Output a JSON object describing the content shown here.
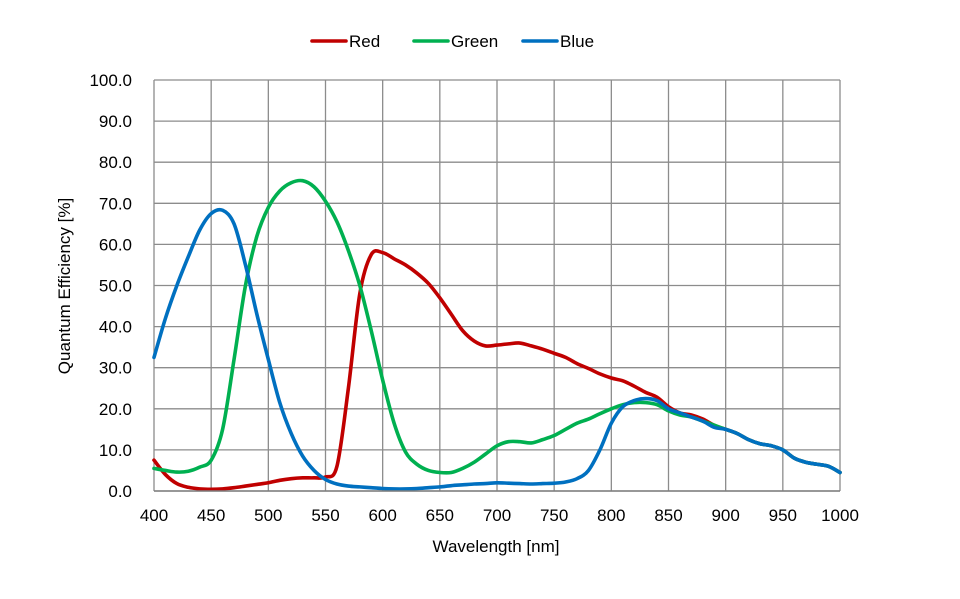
{
  "chart_data": {
    "type": "line",
    "title": "",
    "xlabel": "Wavelength [nm]",
    "ylabel": "Quantum Efficiency [%]",
    "xlim": [
      400,
      1000
    ],
    "ylim": [
      0,
      100
    ],
    "x_ticks": [
      400,
      450,
      500,
      550,
      600,
      650,
      700,
      750,
      800,
      850,
      900,
      950,
      1000
    ],
    "y_ticks": [
      0,
      10,
      20,
      30,
      40,
      50,
      60,
      70,
      80,
      90,
      100
    ],
    "y_tick_labels": [
      "0.0",
      "10.0",
      "20.0",
      "30.0",
      "40.0",
      "50.0",
      "60.0",
      "70.0",
      "80.0",
      "90.0",
      "100.0"
    ],
    "grid": true,
    "legend_position": "top-center",
    "series": [
      {
        "name": "Red",
        "color": "#C00000",
        "x": [
          400,
          410,
          420,
          430,
          440,
          450,
          460,
          470,
          480,
          490,
          500,
          510,
          520,
          530,
          540,
          550,
          560,
          570,
          580,
          590,
          600,
          610,
          620,
          630,
          640,
          650,
          660,
          670,
          680,
          690,
          700,
          710,
          720,
          730,
          740,
          750,
          760,
          770,
          780,
          790,
          800,
          810,
          820,
          830,
          840,
          850,
          860,
          870,
          880,
          890,
          900,
          910,
          920,
          930,
          940,
          950,
          960,
          970,
          980,
          990,
          1000
        ],
        "values": [
          7.5,
          4.0,
          1.8,
          0.9,
          0.5,
          0.4,
          0.5,
          0.8,
          1.2,
          1.6,
          2.0,
          2.6,
          3.0,
          3.2,
          3.2,
          3.4,
          6.0,
          25.0,
          48.0,
          57.5,
          58.0,
          56.5,
          55.0,
          53.0,
          50.5,
          47.0,
          43.0,
          39.0,
          36.5,
          35.3,
          35.5,
          35.8,
          36.0,
          35.3,
          34.5,
          33.5,
          32.5,
          31.0,
          29.8,
          28.5,
          27.5,
          26.8,
          25.5,
          24.0,
          22.8,
          20.5,
          19.0,
          18.5,
          17.5,
          16.0,
          15.0,
          14.0,
          12.5,
          11.5,
          11.0,
          10.0,
          8.0,
          7.0,
          6.5,
          6.0,
          4.5
        ]
      },
      {
        "name": "Green",
        "color": "#00B050",
        "x": [
          400,
          410,
          420,
          430,
          440,
          450,
          460,
          470,
          480,
          490,
          500,
          510,
          520,
          530,
          540,
          550,
          560,
          570,
          580,
          590,
          600,
          610,
          620,
          630,
          640,
          650,
          660,
          670,
          680,
          690,
          700,
          710,
          720,
          730,
          740,
          750,
          760,
          770,
          780,
          790,
          800,
          810,
          820,
          830,
          840,
          850,
          860,
          870,
          880,
          890,
          900,
          910,
          920,
          930,
          940,
          950,
          960,
          970,
          980,
          990,
          1000
        ],
        "values": [
          5.5,
          5.0,
          4.6,
          4.8,
          5.8,
          7.5,
          15.0,
          32.0,
          50.0,
          62.0,
          69.0,
          73.0,
          75.0,
          75.5,
          74.0,
          70.5,
          65.5,
          58.5,
          50.0,
          39.0,
          27.0,
          16.5,
          9.5,
          6.5,
          5.0,
          4.5,
          4.5,
          5.5,
          7.0,
          9.0,
          11.0,
          12.0,
          12.0,
          11.7,
          12.5,
          13.5,
          15.0,
          16.5,
          17.5,
          18.8,
          20.0,
          21.0,
          21.5,
          21.5,
          21.0,
          19.5,
          18.5,
          18.0,
          17.0,
          16.0,
          15.0,
          14.0,
          12.5,
          11.5,
          11.0,
          10.0,
          8.0,
          7.0,
          6.5,
          6.0,
          4.5
        ]
      },
      {
        "name": "Blue",
        "color": "#0070C0",
        "x": [
          400,
          410,
          420,
          430,
          440,
          450,
          460,
          470,
          480,
          490,
          500,
          510,
          520,
          530,
          540,
          550,
          560,
          570,
          580,
          590,
          600,
          610,
          620,
          630,
          640,
          650,
          660,
          670,
          680,
          690,
          700,
          710,
          720,
          730,
          740,
          750,
          760,
          770,
          780,
          790,
          800,
          810,
          820,
          830,
          840,
          850,
          860,
          870,
          880,
          890,
          900,
          910,
          920,
          930,
          940,
          950,
          960,
          970,
          980,
          990,
          1000
        ],
        "values": [
          32.5,
          42.0,
          50.0,
          57.0,
          63.5,
          67.5,
          68.3,
          65.0,
          55.0,
          43.0,
          32.0,
          21.5,
          14.0,
          8.5,
          5.0,
          2.8,
          1.7,
          1.2,
          1.0,
          0.8,
          0.6,
          0.5,
          0.5,
          0.6,
          0.8,
          1.0,
          1.3,
          1.5,
          1.7,
          1.8,
          2.0,
          1.9,
          1.8,
          1.7,
          1.8,
          1.9,
          2.2,
          3.0,
          5.0,
          10.0,
          16.5,
          20.5,
          22.0,
          22.5,
          22.0,
          20.0,
          19.0,
          18.0,
          17.0,
          15.5,
          15.0,
          14.0,
          12.5,
          11.5,
          11.0,
          10.0,
          8.0,
          7.0,
          6.5,
          6.0,
          4.5
        ]
      }
    ]
  }
}
